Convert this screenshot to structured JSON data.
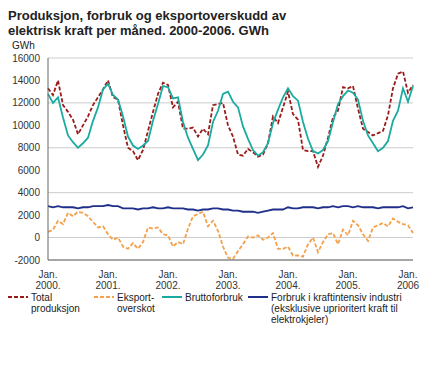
{
  "chart_data": {
    "type": "line",
    "title": "Produksjon, forbruk og eksportoverskudd av elektrisk kraft per måned. 2000-2006. GWh",
    "y_label": "GWh",
    "categories": [
      "Jan. 2000.",
      null,
      null,
      null,
      null,
      null,
      null,
      null,
      null,
      null,
      null,
      null,
      "Jan. 2001.",
      null,
      null,
      null,
      null,
      null,
      null,
      null,
      null,
      null,
      null,
      null,
      "Jan. 2002.",
      null,
      null,
      null,
      null,
      null,
      null,
      null,
      null,
      null,
      null,
      null,
      "Jan. 2003.",
      null,
      null,
      null,
      null,
      null,
      null,
      null,
      null,
      null,
      null,
      null,
      "Jan. 2004.",
      null,
      null,
      null,
      null,
      null,
      null,
      null,
      null,
      null,
      null,
      null,
      "Jan. 2005.",
      null,
      null,
      null,
      null,
      null,
      null,
      null,
      null,
      null,
      null,
      null,
      "Jan. 2006",
      null
    ],
    "series": [
      {
        "name": "Total produksjon",
        "color": "#9b1b1b",
        "line_style": "dashed",
        "values": [
          13300,
          12700,
          14000,
          11800,
          11200,
          10500,
          9200,
          10000,
          10800,
          11800,
          12500,
          13200,
          14000,
          12500,
          12300,
          10000,
          8000,
          7700,
          6900,
          7800,
          9500,
          11200,
          12800,
          13800,
          13600,
          11600,
          12100,
          9700,
          9700,
          9800,
          9000,
          9700,
          9200,
          11800,
          11900,
          12000,
          10000,
          9000,
          7400,
          7300,
          7900,
          7600,
          7200,
          7400,
          8400,
          10800,
          10200,
          11600,
          13000,
          11000,
          10500,
          7800,
          7700,
          7700,
          6300,
          7300,
          8900,
          10700,
          11300,
          13400,
          13300,
          13500,
          11500,
          9700,
          9400,
          9100,
          9300,
          9500,
          10900,
          13300,
          14600,
          14800,
          12900,
          13600
        ]
      },
      {
        "name": "Eksport- overskot",
        "color": "#f5a04a",
        "line_style": "dashed",
        "values": [
          500,
          700,
          1500,
          1200,
          2200,
          1900,
          2300,
          2200,
          1900,
          1400,
          900,
          1000,
          300,
          -200,
          0,
          -800,
          -1000,
          -500,
          -1000,
          -400,
          900,
          800,
          900,
          300,
          200,
          -800,
          -400,
          -600,
          800,
          1900,
          2100,
          2300,
          1000,
          1500,
          600,
          -800,
          -1800,
          -1900,
          -1200,
          -600,
          100,
          0,
          200,
          -200,
          0,
          400,
          -1000,
          -1000,
          -800,
          -1600,
          -1600,
          -1700,
          -600,
          0,
          -1300,
          -400,
          300,
          400,
          -600,
          700,
          200,
          1500,
          1100,
          300,
          -300,
          900,
          1100,
          1300,
          1000,
          1700,
          1400,
          1200,
          1100,
          400
        ]
      },
      {
        "name": "Bruttoforbruk",
        "color": "#1aaba0",
        "line_style": "solid",
        "values": [
          12800,
          12000,
          12500,
          10700,
          9100,
          8500,
          8000,
          8400,
          8900,
          10400,
          11600,
          13200,
          13700,
          12700,
          12300,
          10800,
          9000,
          8200,
          7900,
          8200,
          8600,
          10400,
          11900,
          13500,
          13400,
          12400,
          12500,
          10300,
          8900,
          7900,
          6900,
          7400,
          8200,
          10300,
          11300,
          12800,
          13000,
          12100,
          11600,
          9900,
          8800,
          7800,
          7300,
          7600,
          8400,
          10200,
          11400,
          12500,
          13300,
          12600,
          12200,
          10300,
          8800,
          7700,
          7500,
          7800,
          8600,
          10300,
          11900,
          12600,
          13100,
          12900,
          12300,
          10400,
          9100,
          8400,
          7700,
          8000,
          8600,
          10400,
          11300,
          13300,
          12100,
          13500
        ]
      },
      {
        "name": "Forbruk i kraftintensiv industri (eksklusive uprioritert kraft til elektrokjeler)",
        "color": "#1f2f8a",
        "line_style": "solid",
        "values": [
          2800,
          2700,
          2800,
          2700,
          2700,
          2700,
          2600,
          2700,
          2700,
          2800,
          2800,
          2800,
          2900,
          2800,
          2800,
          2600,
          2600,
          2600,
          2500,
          2600,
          2600,
          2700,
          2600,
          2600,
          2700,
          2600,
          2600,
          2600,
          2500,
          2500,
          2400,
          2500,
          2500,
          2600,
          2600,
          2500,
          2500,
          2400,
          2400,
          2300,
          2300,
          2300,
          2200,
          2300,
          2400,
          2500,
          2500,
          2500,
          2700,
          2600,
          2600,
          2700,
          2700,
          2700,
          2600,
          2700,
          2700,
          2800,
          2700,
          2800,
          2800,
          2700,
          2800,
          2700,
          2700,
          2700,
          2600,
          2700,
          2700,
          2700,
          2700,
          2800,
          2600,
          2700
        ]
      }
    ],
    "ylim": [
      -2000,
      16000
    ],
    "yticks": [
      -2000,
      0,
      2000,
      4000,
      6000,
      8000,
      10000,
      12000,
      14000,
      16000
    ],
    "grid": true,
    "legend": "bottom"
  }
}
